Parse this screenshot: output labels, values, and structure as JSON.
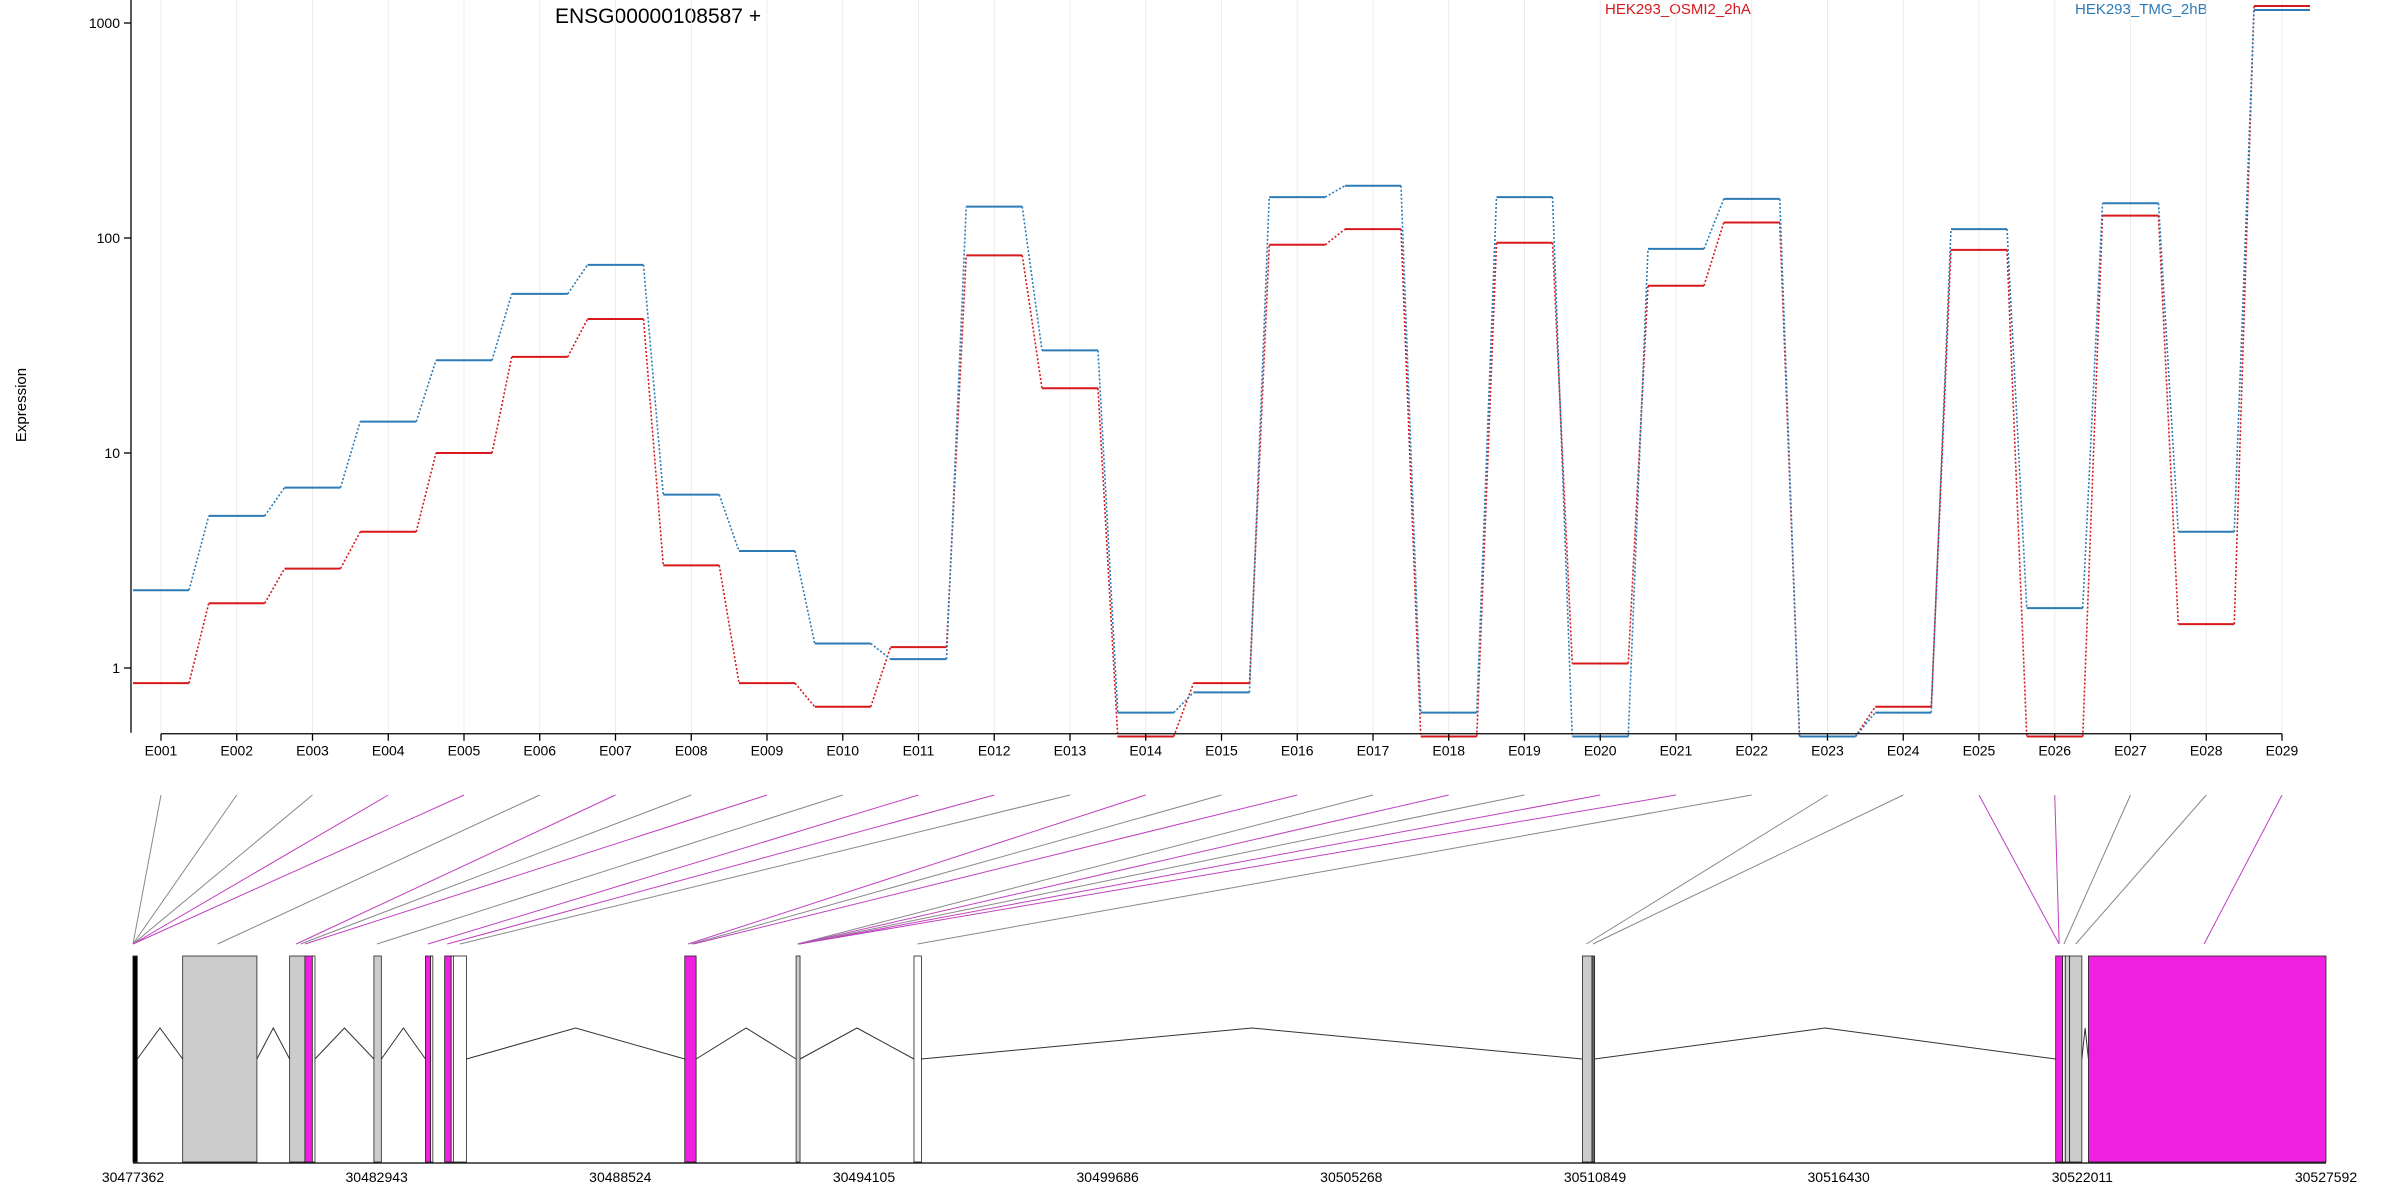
{
  "chart_data": {
    "type": "line",
    "title": "ENSG00000108587 +",
    "ylabel": "Expression",
    "yscale": "log",
    "ylim": [
      0.5,
      1500
    ],
    "yticks": [
      1,
      10,
      100,
      1000
    ],
    "grid": true,
    "legend_position": "top",
    "categories": [
      "E001",
      "E002",
      "E003",
      "E004",
      "E005",
      "E006",
      "E007",
      "E008",
      "E009",
      "E010",
      "E011",
      "E012",
      "E013",
      "E014",
      "E015",
      "E016",
      "E017",
      "E018",
      "E019",
      "E020",
      "E021",
      "E022",
      "E023",
      "E024",
      "E025",
      "E026",
      "E027",
      "E028",
      "E029"
    ],
    "series": [
      {
        "name": "HEK293_OSMI2_2hA",
        "color": "#d7191c",
        "values": [
          0.85,
          2.0,
          2.9,
          4.3,
          10,
          28,
          42,
          3.0,
          0.85,
          0.66,
          1.25,
          83,
          20,
          0.48,
          0.85,
          93,
          110,
          0.48,
          95,
          1.05,
          60,
          118,
          0.48,
          0.66,
          88,
          0.48,
          127,
          1.6,
          1200
        ]
      },
      {
        "name": "HEK293_TMG_2hB",
        "color": "#2c7bb6",
        "values": [
          2.3,
          5.1,
          6.9,
          14,
          27,
          55,
          75,
          6.4,
          3.5,
          1.3,
          1.1,
          140,
          30,
          0.62,
          0.77,
          155,
          175,
          0.62,
          155,
          0.48,
          89,
          152,
          0.48,
          0.62,
          110,
          1.9,
          145,
          4.3,
          1150
        ]
      }
    ],
    "genomic_axis": {
      "tick_labels": [
        "30477362",
        "30482943",
        "30488524",
        "30494105",
        "30499686",
        "30505268",
        "30510849",
        "30516430",
        "30522011",
        "30527592"
      ],
      "range": [
        30477362,
        30527592
      ]
    },
    "gene_model": {
      "exons": [
        {
          "id": "E001",
          "start": 30477360,
          "end": 30477460,
          "color": "#000000"
        },
        {
          "id": "E002",
          "start": 30478500,
          "end": 30480200,
          "color": "#cccccc"
        },
        {
          "id": "E003",
          "start": 30480950,
          "end": 30481300,
          "color": "#cccccc"
        },
        {
          "id": "E004",
          "start": 30481300,
          "end": 30481470,
          "color": "#f020e0"
        },
        {
          "id": "E005",
          "start": 30481470,
          "end": 30481530,
          "color": "#ffffff"
        },
        {
          "id": "E006",
          "start": 30482880,
          "end": 30483050,
          "color": "#cccccc"
        },
        {
          "id": "E007",
          "start": 30484060,
          "end": 30484180,
          "color": "#f020e0"
        },
        {
          "id": "E008",
          "start": 30484180,
          "end": 30484230,
          "color": "#ffffff"
        },
        {
          "id": "E009",
          "start": 30484500,
          "end": 30484650,
          "color": "#f020e0"
        },
        {
          "id": "E010",
          "start": 30484650,
          "end": 30484700,
          "color": "#ffffff"
        },
        {
          "id": "E011",
          "start": 30484700,
          "end": 30485000,
          "color": "#ffffff"
        },
        {
          "id": "E012",
          "start": 30490000,
          "end": 30490260,
          "color": "#f020e0"
        },
        {
          "id": "E013",
          "start": 30492550,
          "end": 30492640,
          "color": "#cccccc"
        },
        {
          "id": "E014",
          "start": 30495250,
          "end": 30495420,
          "color": "#ffffff"
        },
        {
          "id": "E015",
          "start": 30510560,
          "end": 30510780,
          "color": "#cccccc"
        },
        {
          "id": "E016",
          "start": 30510780,
          "end": 30510840,
          "color": "#666666"
        },
        {
          "id": "E017",
          "start": 30521400,
          "end": 30521560,
          "color": "#f020e0"
        },
        {
          "id": "E018",
          "start": 30521560,
          "end": 30521620,
          "color": "#ffffff"
        },
        {
          "id": "E019",
          "start": 30521620,
          "end": 30521720,
          "color": "#cccccc"
        },
        {
          "id": "E020",
          "start": 30521720,
          "end": 30522000,
          "color": "#cccccc"
        },
        {
          "id": "E021",
          "start": 30522150,
          "end": 30527592,
          "color": "#f020e0"
        }
      ],
      "introns": [
        {
          "from": 30477460,
          "to": 30478500
        },
        {
          "from": 30480200,
          "to": 30480950
        },
        {
          "from": 30481530,
          "to": 30482880
        },
        {
          "from": 30483050,
          "to": 30484060
        },
        {
          "from": 30485000,
          "to": 30490000
        },
        {
          "from": 30490260,
          "to": 30492550
        },
        {
          "from": 30492640,
          "to": 30495250
        },
        {
          "from": 30495420,
          "to": 30510560
        },
        {
          "from": 30510840,
          "to": 30521400
        },
        {
          "from": 30522000,
          "to": 30522150
        }
      ],
      "bin_connectors": [
        {
          "bin": "E001",
          "pos": 30477362,
          "color": "#888888"
        },
        {
          "bin": "E002",
          "pos": 30477362,
          "color": "#888888"
        },
        {
          "bin": "E003",
          "pos": 30477362,
          "color": "#888888"
        },
        {
          "bin": "E004",
          "pos": 30477362,
          "color": "#c040c0"
        },
        {
          "bin": "E005",
          "pos": 30477362,
          "color": "#c040c0"
        },
        {
          "bin": "E006",
          "pos": 30479300,
          "color": "#888888"
        },
        {
          "bin": "E007",
          "pos": 30481100,
          "color": "#c040c0"
        },
        {
          "bin": "E008",
          "pos": 30481200,
          "color": "#888888"
        },
        {
          "bin": "E009",
          "pos": 30481300,
          "color": "#c040c0"
        },
        {
          "bin": "E010",
          "pos": 30482950,
          "color": "#888888"
        },
        {
          "bin": "E011",
          "pos": 30484120,
          "color": "#c040c0"
        },
        {
          "bin": "E012",
          "pos": 30484560,
          "color": "#c040c0"
        },
        {
          "bin": "E013",
          "pos": 30484850,
          "color": "#888888"
        },
        {
          "bin": "E014",
          "pos": 30490080,
          "color": "#c040c0"
        },
        {
          "bin": "E015",
          "pos": 30490150,
          "color": "#888888"
        },
        {
          "bin": "E016",
          "pos": 30490200,
          "color": "#c040c0"
        },
        {
          "bin": "E017",
          "pos": 30492580,
          "color": "#888888"
        },
        {
          "bin": "E018",
          "pos": 30492600,
          "color": "#c040c0"
        },
        {
          "bin": "E019",
          "pos": 30492620,
          "color": "#888888"
        },
        {
          "bin": "E020",
          "pos": 30492620,
          "color": "#c040c0"
        },
        {
          "bin": "E021",
          "pos": 30492620,
          "color": "#c040c0"
        },
        {
          "bin": "E022",
          "pos": 30495330,
          "color": "#888888"
        },
        {
          "bin": "E023",
          "pos": 30510650,
          "color": "#888888"
        },
        {
          "bin": "E024",
          "pos": 30510800,
          "color": "#888888"
        },
        {
          "bin": "E025",
          "pos": 30521480,
          "color": "#c040c0"
        },
        {
          "bin": "E026",
          "pos": 30521480,
          "color": "#c040c0"
        },
        {
          "bin": "E027",
          "pos": 30521590,
          "color": "#888888"
        },
        {
          "bin": "E028",
          "pos": 30521860,
          "color": "#888888"
        },
        {
          "bin": "E029",
          "pos": 30524800,
          "color": "#c040c0"
        }
      ]
    }
  }
}
